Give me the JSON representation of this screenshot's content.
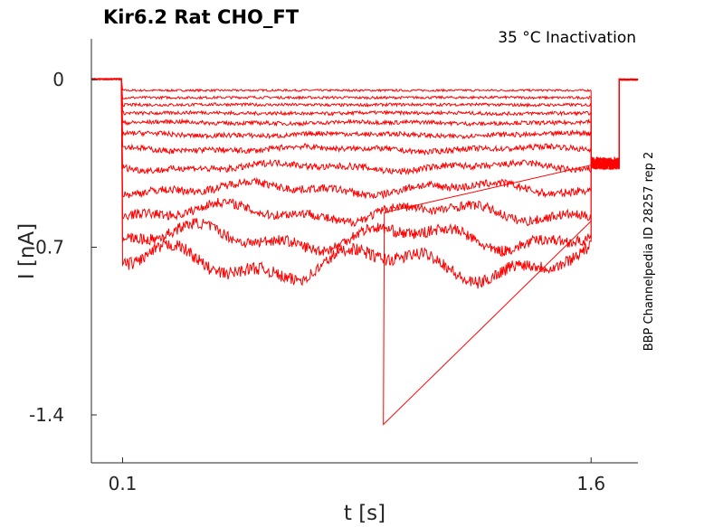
{
  "chart_data": {
    "type": "line",
    "title": "Kir6.2  Rat  CHO_FT",
    "condition": "35 °C  Inactivation",
    "side_label": "BBP Channelpedia ID 28257 rep 2",
    "xlabel": "t [s]",
    "ylabel": "I [nA]",
    "xticks": [
      {
        "value": 0.1,
        "label": "0.1"
      },
      {
        "value": 1.6,
        "label": "1.6"
      }
    ],
    "yticks": [
      {
        "value": 0,
        "label": "0"
      },
      {
        "value": -0.7,
        "label": "-0.7"
      },
      {
        "value": -1.4,
        "label": "-1.4"
      }
    ],
    "xlim": [
      0.0,
      1.75
    ],
    "ylim": [
      -1.6,
      0.17
    ],
    "grid": false,
    "line_color": "#ff0000",
    "pulse_window": [
      0.1,
      1.6
    ],
    "spike": {
      "t": 0.935,
      "i": -1.44
    },
    "series": [
      {
        "steady": -0.045
      },
      {
        "steady": -0.075
      },
      {
        "steady": -0.105
      },
      {
        "steady": -0.14
      },
      {
        "steady": -0.18
      },
      {
        "steady": -0.23
      },
      {
        "steady": -0.29
      },
      {
        "steady": -0.365
      },
      {
        "steady": -0.455
      },
      {
        "steady": -0.555
      },
      {
        "steady": -0.66
      },
      {
        "steady": -0.77
      }
    ]
  }
}
